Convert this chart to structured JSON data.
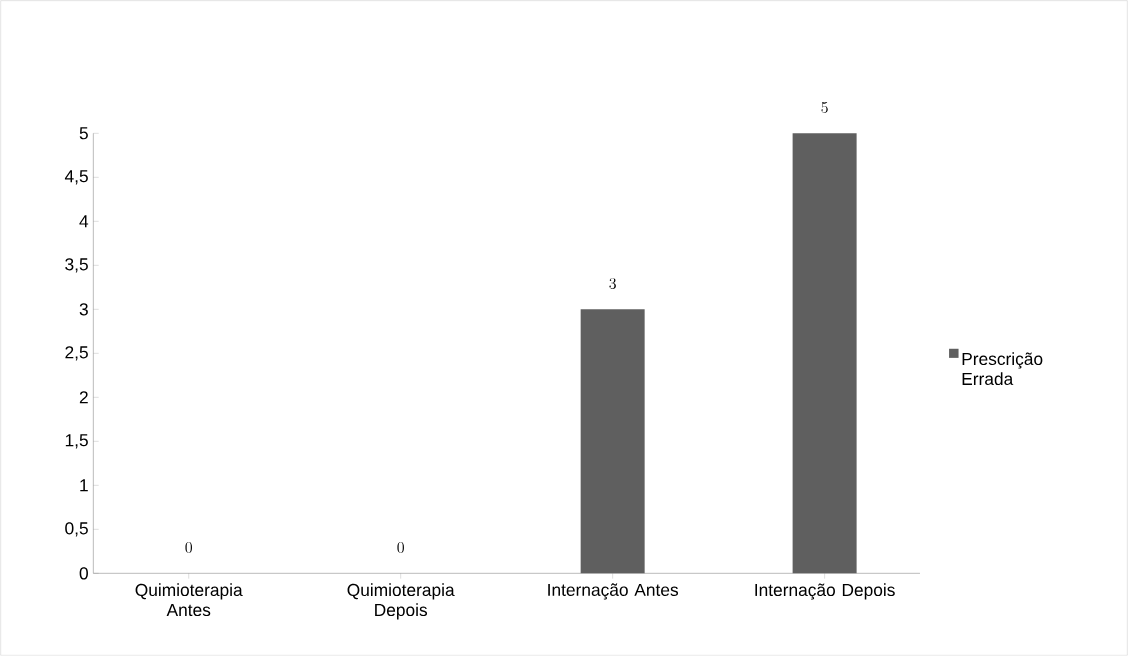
{
  "chart_data": {
    "type": "bar",
    "categories": [
      "Quimioterapia Antes",
      "Quimioterapia Depois",
      "Internação Antes",
      "Internação Depois"
    ],
    "series": [
      {
        "name": "Prescrição Errada",
        "color": "#5f5f5f",
        "values": [
          0,
          0,
          3,
          5
        ]
      }
    ],
    "ylim": [
      0,
      5
    ],
    "yticks": [
      0,
      {
        "value": 0.5,
        "label": "0,5"
      },
      1,
      {
        "value": 1.5,
        "label": "1,5"
      },
      2,
      {
        "value": 2.5,
        "label": "2,5"
      },
      3,
      {
        "value": 3.5,
        "label": "3,5"
      },
      4,
      {
        "value": 4.5,
        "label": "4,5"
      },
      5
    ],
    "data_labels": true,
    "legend": "right",
    "grid": false
  }
}
